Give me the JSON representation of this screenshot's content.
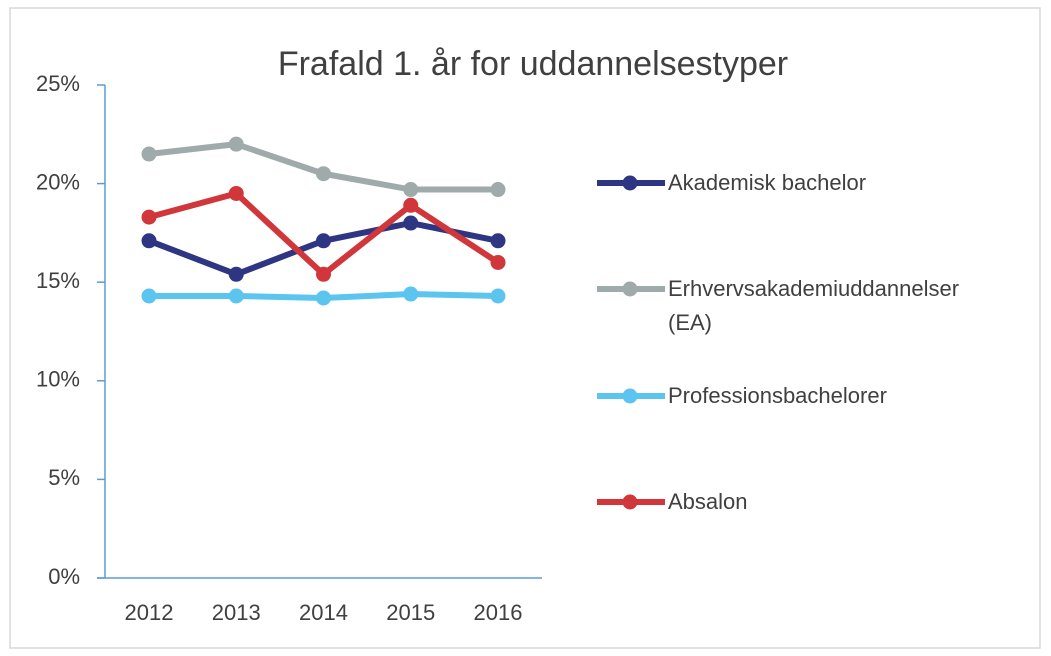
{
  "chart_data": {
    "type": "line",
    "title": "Frafald 1. år for uddannelsestyper",
    "categories": [
      "2012",
      "2013",
      "2014",
      "2015",
      "2016"
    ],
    "series": [
      {
        "name": "Akademisk bachelor",
        "color": "#2e3582",
        "values": [
          17.1,
          15.4,
          17.1,
          18.0,
          17.1
        ]
      },
      {
        "name": "Erhvervsakademiuddannelser (EA)",
        "color": "#9fabab",
        "values": [
          21.5,
          22.0,
          20.5,
          19.7,
          19.7
        ]
      },
      {
        "name": "Professionsbachelorer",
        "color": "#5bc5ef",
        "values": [
          14.3,
          14.3,
          14.2,
          14.4,
          14.3
        ]
      },
      {
        "name": "Absalon",
        "color": "#d0363a",
        "values": [
          18.3,
          19.5,
          15.4,
          18.9,
          16.0
        ]
      }
    ],
    "ylim": [
      0,
      25
    ],
    "yticks": [
      {
        "value": 0,
        "label": "0%"
      },
      {
        "value": 5,
        "label": "5%"
      },
      {
        "value": 10,
        "label": "10%"
      },
      {
        "value": 15,
        "label": "15%"
      },
      {
        "value": 20,
        "label": "20%"
      },
      {
        "value": 25,
        "label": "25%"
      }
    ],
    "legend": "right",
    "grid": false
  }
}
